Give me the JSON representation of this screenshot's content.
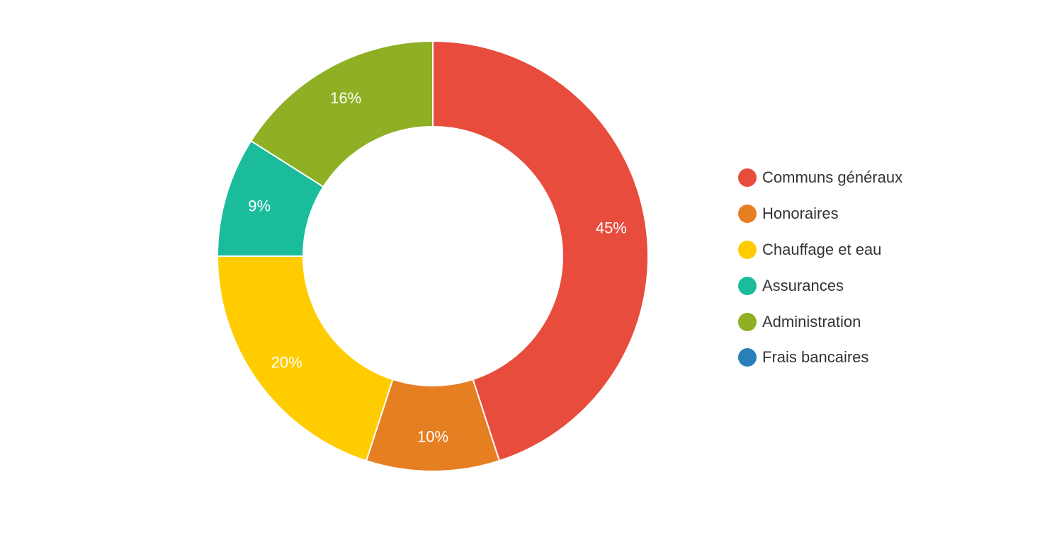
{
  "chart_data": {
    "type": "pie",
    "donut": true,
    "legend_position": "right",
    "slices": [
      {
        "name": "Communs généraux",
        "value": 45,
        "label": "45%",
        "color": "#e74c3c"
      },
      {
        "name": "Honoraires",
        "value": 10,
        "label": "10%",
        "color": "#e67e22"
      },
      {
        "name": "Chauffage et eau",
        "value": 20,
        "label": "20%",
        "color": "#ffcc00"
      },
      {
        "name": "Assurances",
        "value": 9,
        "label": "9%",
        "color": "#1abc9c"
      },
      {
        "name": "Administration",
        "value": 16,
        "label": "16%",
        "color": "#8fb024"
      },
      {
        "name": "Frais bancaires",
        "value": 0,
        "label": "",
        "color": "#2980b9"
      }
    ]
  }
}
